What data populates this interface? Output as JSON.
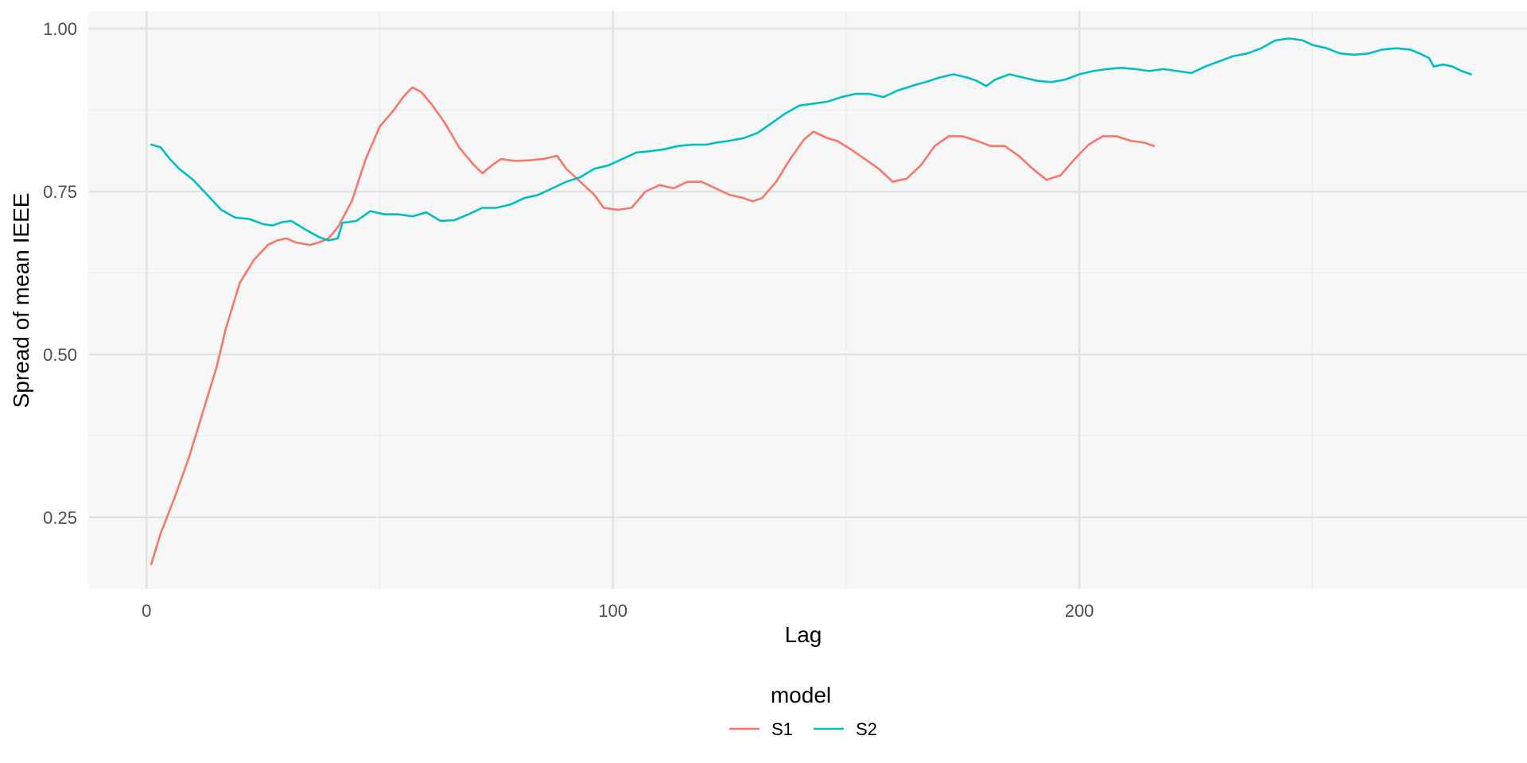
{
  "chart_data": {
    "type": "line",
    "title": "",
    "xlabel": "Lag",
    "ylabel": "Spread of mean IEEE",
    "xlim": [
      -12.5,
      296
    ],
    "ylim": [
      0.14,
      1.027
    ],
    "x_ticks": [
      0,
      100,
      200
    ],
    "x_tick_labels": [
      "0",
      "100",
      "200"
    ],
    "y_ticks": [
      0.25,
      0.5,
      0.75,
      1.0
    ],
    "y_tick_labels": [
      "0.25",
      "0.50",
      "0.75",
      "1.00"
    ],
    "grid": true,
    "legend": {
      "title": "model",
      "position": "bottom"
    },
    "series": [
      {
        "name": "S1",
        "color": "#F8766D",
        "points": [
          [
            1,
            0.178
          ],
          [
            3,
            0.225
          ],
          [
            6,
            0.28
          ],
          [
            9,
            0.34
          ],
          [
            12,
            0.41
          ],
          [
            15,
            0.48
          ],
          [
            17,
            0.54
          ],
          [
            20,
            0.61
          ],
          [
            23,
            0.645
          ],
          [
            26,
            0.668
          ],
          [
            28,
            0.675
          ],
          [
            30,
            0.678
          ],
          [
            32,
            0.672
          ],
          [
            35,
            0.668
          ],
          [
            37,
            0.672
          ],
          [
            39,
            0.678
          ],
          [
            41,
            0.695
          ],
          [
            44,
            0.735
          ],
          [
            47,
            0.8
          ],
          [
            50,
            0.85
          ],
          [
            53,
            0.875
          ],
          [
            55,
            0.895
          ],
          [
            57,
            0.91
          ],
          [
            59,
            0.902
          ],
          [
            61,
            0.885
          ],
          [
            64,
            0.855
          ],
          [
            67,
            0.818
          ],
          [
            70,
            0.792
          ],
          [
            72,
            0.778
          ],
          [
            74,
            0.79
          ],
          [
            76,
            0.8
          ],
          [
            79,
            0.797
          ],
          [
            82,
            0.798
          ],
          [
            85,
            0.8
          ],
          [
            88,
            0.805
          ],
          [
            90,
            0.785
          ],
          [
            93,
            0.765
          ],
          [
            96,
            0.745
          ],
          [
            98,
            0.725
          ],
          [
            101,
            0.722
          ],
          [
            104,
            0.725
          ],
          [
            107,
            0.75
          ],
          [
            110,
            0.76
          ],
          [
            113,
            0.755
          ],
          [
            116,
            0.765
          ],
          [
            119,
            0.765
          ],
          [
            122,
            0.755
          ],
          [
            125,
            0.745
          ],
          [
            128,
            0.74
          ],
          [
            130,
            0.735
          ],
          [
            132,
            0.74
          ],
          [
            135,
            0.765
          ],
          [
            138,
            0.8
          ],
          [
            141,
            0.83
          ],
          [
            143,
            0.842
          ],
          [
            146,
            0.832
          ],
          [
            148,
            0.828
          ],
          [
            151,
            0.815
          ],
          [
            154,
            0.8
          ],
          [
            157,
            0.785
          ],
          [
            160,
            0.765
          ],
          [
            163,
            0.77
          ],
          [
            166,
            0.79
          ],
          [
            169,
            0.82
          ],
          [
            172,
            0.835
          ],
          [
            175,
            0.835
          ],
          [
            178,
            0.828
          ],
          [
            181,
            0.82
          ],
          [
            184,
            0.82
          ],
          [
            187,
            0.805
          ],
          [
            190,
            0.785
          ],
          [
            193,
            0.768
          ],
          [
            196,
            0.775
          ],
          [
            199,
            0.8
          ],
          [
            202,
            0.822
          ],
          [
            205,
            0.835
          ],
          [
            208,
            0.835
          ],
          [
            211,
            0.828
          ],
          [
            214,
            0.825
          ],
          [
            216,
            0.82
          ]
        ]
      },
      {
        "name": "S2",
        "color": "#00BFC4",
        "points": [
          [
            1,
            0.822
          ],
          [
            3,
            0.818
          ],
          [
            5,
            0.8
          ],
          [
            7,
            0.785
          ],
          [
            10,
            0.768
          ],
          [
            13,
            0.745
          ],
          [
            16,
            0.722
          ],
          [
            19,
            0.71
          ],
          [
            22,
            0.708
          ],
          [
            25,
            0.7
          ],
          [
            27,
            0.698
          ],
          [
            29,
            0.703
          ],
          [
            31,
            0.705
          ],
          [
            34,
            0.692
          ],
          [
            37,
            0.68
          ],
          [
            39,
            0.675
          ],
          [
            41,
            0.678
          ],
          [
            42,
            0.702
          ],
          [
            45,
            0.705
          ],
          [
            48,
            0.72
          ],
          [
            51,
            0.715
          ],
          [
            54,
            0.715
          ],
          [
            57,
            0.712
          ],
          [
            60,
            0.718
          ],
          [
            63,
            0.705
          ],
          [
            66,
            0.706
          ],
          [
            69,
            0.715
          ],
          [
            72,
            0.725
          ],
          [
            75,
            0.725
          ],
          [
            78,
            0.73
          ],
          [
            81,
            0.74
          ],
          [
            84,
            0.745
          ],
          [
            87,
            0.755
          ],
          [
            90,
            0.765
          ],
          [
            93,
            0.772
          ],
          [
            96,
            0.785
          ],
          [
            99,
            0.79
          ],
          [
            102,
            0.8
          ],
          [
            105,
            0.81
          ],
          [
            108,
            0.812
          ],
          [
            111,
            0.815
          ],
          [
            114,
            0.82
          ],
          [
            117,
            0.822
          ],
          [
            120,
            0.822
          ],
          [
            122,
            0.825
          ],
          [
            125,
            0.828
          ],
          [
            128,
            0.832
          ],
          [
            131,
            0.84
          ],
          [
            134,
            0.855
          ],
          [
            137,
            0.87
          ],
          [
            140,
            0.882
          ],
          [
            143,
            0.885
          ],
          [
            146,
            0.888
          ],
          [
            149,
            0.895
          ],
          [
            152,
            0.9
          ],
          [
            155,
            0.9
          ],
          [
            158,
            0.895
          ],
          [
            161,
            0.905
          ],
          [
            164,
            0.912
          ],
          [
            167,
            0.918
          ],
          [
            170,
            0.925
          ],
          [
            173,
            0.93
          ],
          [
            176,
            0.925
          ],
          [
            178,
            0.92
          ],
          [
            180,
            0.912
          ],
          [
            182,
            0.922
          ],
          [
            185,
            0.93
          ],
          [
            188,
            0.925
          ],
          [
            191,
            0.92
          ],
          [
            194,
            0.918
          ],
          [
            197,
            0.922
          ],
          [
            200,
            0.93
          ],
          [
            203,
            0.935
          ],
          [
            206,
            0.938
          ],
          [
            209,
            0.94
          ],
          [
            212,
            0.938
          ],
          [
            215,
            0.935
          ],
          [
            218,
            0.938
          ],
          [
            221,
            0.935
          ],
          [
            224,
            0.932
          ],
          [
            227,
            0.942
          ],
          [
            230,
            0.95
          ],
          [
            233,
            0.958
          ],
          [
            236,
            0.962
          ],
          [
            239,
            0.97
          ],
          [
            242,
            0.982
          ],
          [
            245,
            0.985
          ],
          [
            248,
            0.982
          ],
          [
            250,
            0.975
          ],
          [
            253,
            0.97
          ],
          [
            256,
            0.962
          ],
          [
            259,
            0.96
          ],
          [
            262,
            0.962
          ],
          [
            265,
            0.968
          ],
          [
            268,
            0.97
          ],
          [
            271,
            0.968
          ],
          [
            273,
            0.962
          ],
          [
            275,
            0.955
          ],
          [
            276,
            0.942
          ],
          [
            278,
            0.945
          ],
          [
            280,
            0.942
          ],
          [
            282,
            0.935
          ],
          [
            284,
            0.93
          ]
        ]
      }
    ]
  }
}
